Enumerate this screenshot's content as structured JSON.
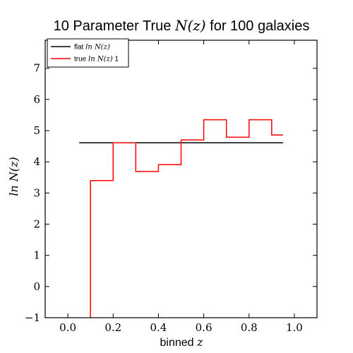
{
  "chart_data": {
    "type": "line",
    "title": "10 Parameter True N(z) for 100 galaxies",
    "title_parts": {
      "pre": "10 Parameter True ",
      "math": "N(z)",
      "post": " for 100 galaxies"
    },
    "xlabel": "binned z",
    "xlabel_parts": {
      "text": "binned ",
      "math": "z"
    },
    "ylabel": "ln N(z)",
    "xlim": [
      -0.1,
      1.1
    ],
    "ylim": [
      -1,
      7.9
    ],
    "xticks": [
      0.0,
      0.2,
      0.4,
      0.6,
      0.8,
      1.0
    ],
    "xtick_labels": [
      "0.0",
      "0.2",
      "0.4",
      "0.6",
      "0.8",
      "1.0"
    ],
    "yticks": [
      -1,
      0,
      1,
      2,
      3,
      4,
      5,
      6,
      7
    ],
    "ytick_labels": [
      "−1",
      "0",
      "1",
      "2",
      "3",
      "4",
      "5",
      "6",
      "7"
    ],
    "grid": false,
    "legend_position": "top-left",
    "series": [
      {
        "name": "flat ln N(z)",
        "legend_text": "flat ",
        "legend_math": "ln N(z)",
        "color": "#000000",
        "style": "horizontal",
        "x_start": 0.05,
        "x_end": 0.95,
        "value": 4.61
      },
      {
        "name": "true ln N(z) 1",
        "legend_text": "true ",
        "legend_math": "ln N(z)",
        "legend_suffix": " 1",
        "color": "#ff0000",
        "style": "steps",
        "bin_edges": [
          0.1,
          0.2,
          0.3,
          0.4,
          0.5,
          0.6,
          0.7,
          0.8,
          0.9,
          0.95
        ],
        "values": [
          3.4,
          4.61,
          3.69,
          3.91,
          4.7,
          5.35,
          4.79,
          5.35,
          4.86
        ],
        "start_from_bottom": true
      }
    ]
  }
}
